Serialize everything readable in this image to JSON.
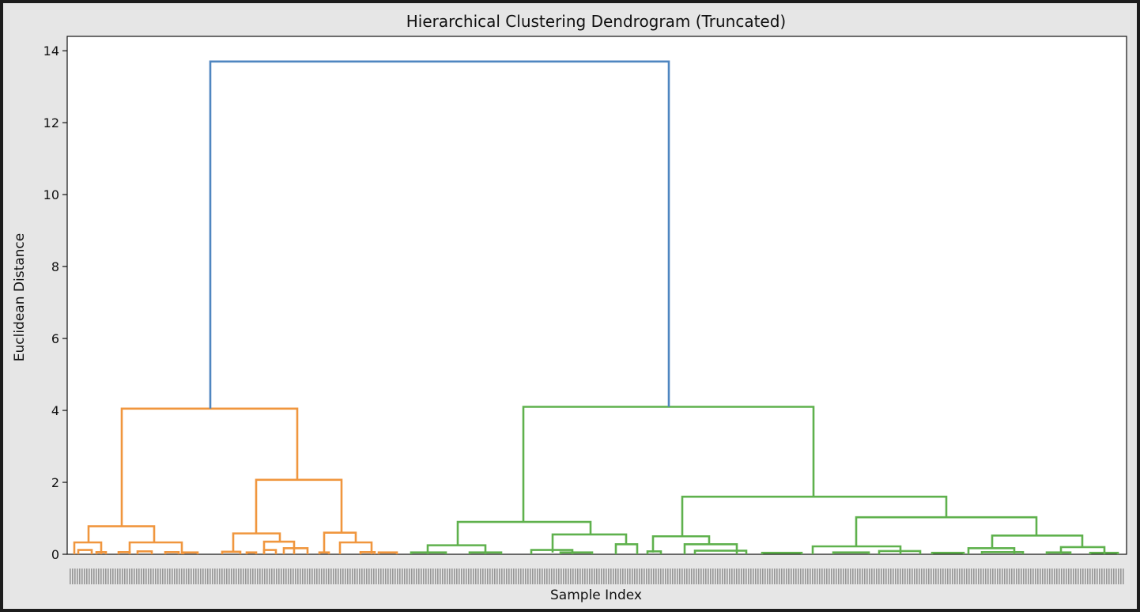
{
  "chart_data": {
    "type": "dendrogram",
    "title": "Hierarchical Clustering Dendrogram (Truncated)",
    "xlabel": "Sample Index",
    "ylabel": "Euclidean Distance",
    "ylim": [
      0,
      14.4
    ],
    "yticks": [
      0,
      2,
      4,
      6,
      8,
      10,
      12,
      14
    ],
    "grid": false,
    "colors": {
      "root": "#4f86c0",
      "cluster_1": "#f0963e",
      "cluster_2": "#5fb14d"
    },
    "root": {
      "height": 13.7,
      "color": "root"
    },
    "clusters": [
      {
        "name": "cluster_1",
        "height": 4.05,
        "links": [
          {
            "height": 4.05,
            "left": 150,
            "right": 372
          },
          {
            "height": 0.78,
            "left": 108,
            "right": 191
          },
          {
            "height": 2.07,
            "left": 320,
            "right": 428
          },
          {
            "height": 0.33,
            "left": 90,
            "right": 124
          },
          {
            "height": 0.33,
            "left": 160,
            "right": 226
          },
          {
            "height": 0.58,
            "left": 291,
            "right": 350
          },
          {
            "height": 0.6,
            "left": 406,
            "right": 446
          },
          {
            "height": 0.35,
            "left": 330,
            "right": 368
          },
          {
            "height": 0.33,
            "left": 426,
            "right": 466
          }
        ]
      },
      {
        "name": "cluster_2",
        "height": 4.1,
        "links": [
          {
            "height": 4.1,
            "left": 658,
            "right": 1025
          },
          {
            "height": 0.9,
            "left": 575,
            "right": 743
          },
          {
            "height": 1.6,
            "left": 859,
            "right": 1193
          },
          {
            "height": 0.25,
            "left": 537,
            "right": 610
          },
          {
            "height": 0.55,
            "left": 695,
            "right": 788
          },
          {
            "height": 0.5,
            "left": 822,
            "right": 893
          },
          {
            "height": 1.03,
            "left": 1079,
            "right": 1307
          },
          {
            "height": 0.28,
            "left": 775,
            "right": 802
          },
          {
            "height": 0.28,
            "left": 862,
            "right": 928
          },
          {
            "height": 0.22,
            "left": 1024,
            "right": 1135
          },
          {
            "height": 0.52,
            "left": 1251,
            "right": 1365
          },
          {
            "height": 0.17,
            "left": 1221,
            "right": 1279
          },
          {
            "height": 0.2,
            "left": 1338,
            "right": 1393
          }
        ]
      }
    ]
  }
}
